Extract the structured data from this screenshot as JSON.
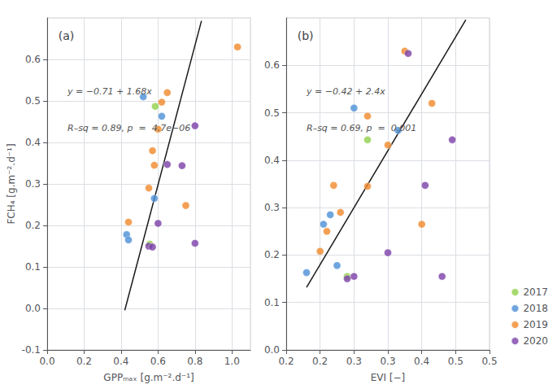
{
  "chart_data": [
    {
      "type": "scatter",
      "title": "(a)",
      "xlabel": "GPPₘₐₓ [g.m⁻².d⁻¹]",
      "ylabel": "FCH₄ [g.m⁻².d⁻¹]",
      "annotations": [
        "y = −0.71 + 1.68x",
        "R–sq = 0.89, p  =  4.7e−06"
      ],
      "xlim": [
        0.0,
        1.1
      ],
      "ylim": [
        -0.1,
        0.7
      ],
      "xticks": [
        {
          "value": 0.0,
          "label": "0.0"
        },
        0.2,
        0.4,
        0.6,
        0.8,
        {
          "value": 1.0,
          "label": "1.0"
        }
      ],
      "yticks": [
        -0.1,
        {
          "value": 0.0,
          "label": "0.0"
        },
        0.1,
        0.2,
        0.3,
        0.4,
        0.5,
        0.6
      ],
      "grid": true,
      "series": [
        {
          "name": "2017",
          "color": "#90d04a",
          "x": [
            0.555,
            0.585
          ],
          "values": [
            0.155,
            0.487
          ]
        },
        {
          "name": "2018",
          "color": "#4b8fd6",
          "x": [
            0.43,
            0.44,
            0.52,
            0.58,
            0.62
          ],
          "values": [
            0.178,
            0.165,
            0.51,
            0.265,
            0.463
          ]
        },
        {
          "name": "2019",
          "color": "#f0882a",
          "x": [
            0.44,
            0.55,
            0.57,
            0.58,
            0.6,
            0.62,
            0.65,
            0.75,
            1.03
          ],
          "values": [
            0.208,
            0.29,
            0.38,
            0.345,
            0.432,
            0.497,
            0.52,
            0.248,
            0.63
          ]
        },
        {
          "name": "2020",
          "color": "#7b3fa8",
          "x": [
            0.55,
            0.57,
            0.6,
            0.65,
            0.73,
            0.8,
            0.8
          ],
          "values": [
            0.15,
            0.148,
            0.205,
            0.347,
            0.344,
            0.157,
            0.44
          ]
        },
        {
          "type": "line",
          "color": "#1a1a1a",
          "x": [
            0.42,
            0.835
          ],
          "values": [
            -0.0044,
            0.6928
          ]
        }
      ]
    },
    {
      "type": "scatter",
      "title": "(b)",
      "xlabel": "EVI [−]",
      "annotations": [
        "y = −0.42 + 2.4x",
        "R–sq = 0.69, p  =  0.001"
      ],
      "xlim": [
        0.2,
        0.5
      ],
      "ylim": [
        0.0,
        0.7
      ],
      "xticks": [
        0.2,
        {
          "value": 0.25,
          "label": "0.2"
        },
        0.3,
        {
          "value": 0.35,
          "label": "0.3"
        },
        0.4,
        {
          "value": 0.45,
          "label": "0.5"
        },
        0.5
      ],
      "yticks": [
        {
          "value": 0.0,
          "label": "0.0"
        },
        0.1,
        0.2,
        0.3,
        0.4,
        0.5,
        0.6
      ],
      "grid": true,
      "legend": "lower right",
      "series": [
        {
          "name": "2017",
          "color": "#90d04a",
          "x": [
            0.32,
            0.29
          ],
          "values": [
            0.443,
            0.155
          ]
        },
        {
          "name": "2018",
          "color": "#4b8fd6",
          "x": [
            0.23,
            0.255,
            0.265,
            0.275,
            0.3,
            0.365
          ],
          "values": [
            0.163,
            0.265,
            0.285,
            0.178,
            0.51,
            0.463
          ]
        },
        {
          "name": "2019",
          "color": "#f0882a",
          "x": [
            0.25,
            0.26,
            0.27,
            0.28,
            0.32,
            0.32,
            0.35,
            0.375,
            0.4,
            0.415
          ],
          "values": [
            0.208,
            0.25,
            0.347,
            0.29,
            0.345,
            0.493,
            0.432,
            0.63,
            0.265,
            0.52
          ]
        },
        {
          "name": "2020",
          "color": "#7b3fa8",
          "x": [
            0.29,
            0.3,
            0.35,
            0.38,
            0.405,
            0.43,
            0.445
          ],
          "values": [
            0.15,
            0.155,
            0.205,
            0.625,
            0.347,
            0.155,
            0.443
          ]
        },
        {
          "type": "line",
          "color": "#1a1a1a",
          "x": [
            0.23,
            0.465
          ],
          "values": [
            0.132,
            0.696
          ]
        }
      ]
    }
  ]
}
